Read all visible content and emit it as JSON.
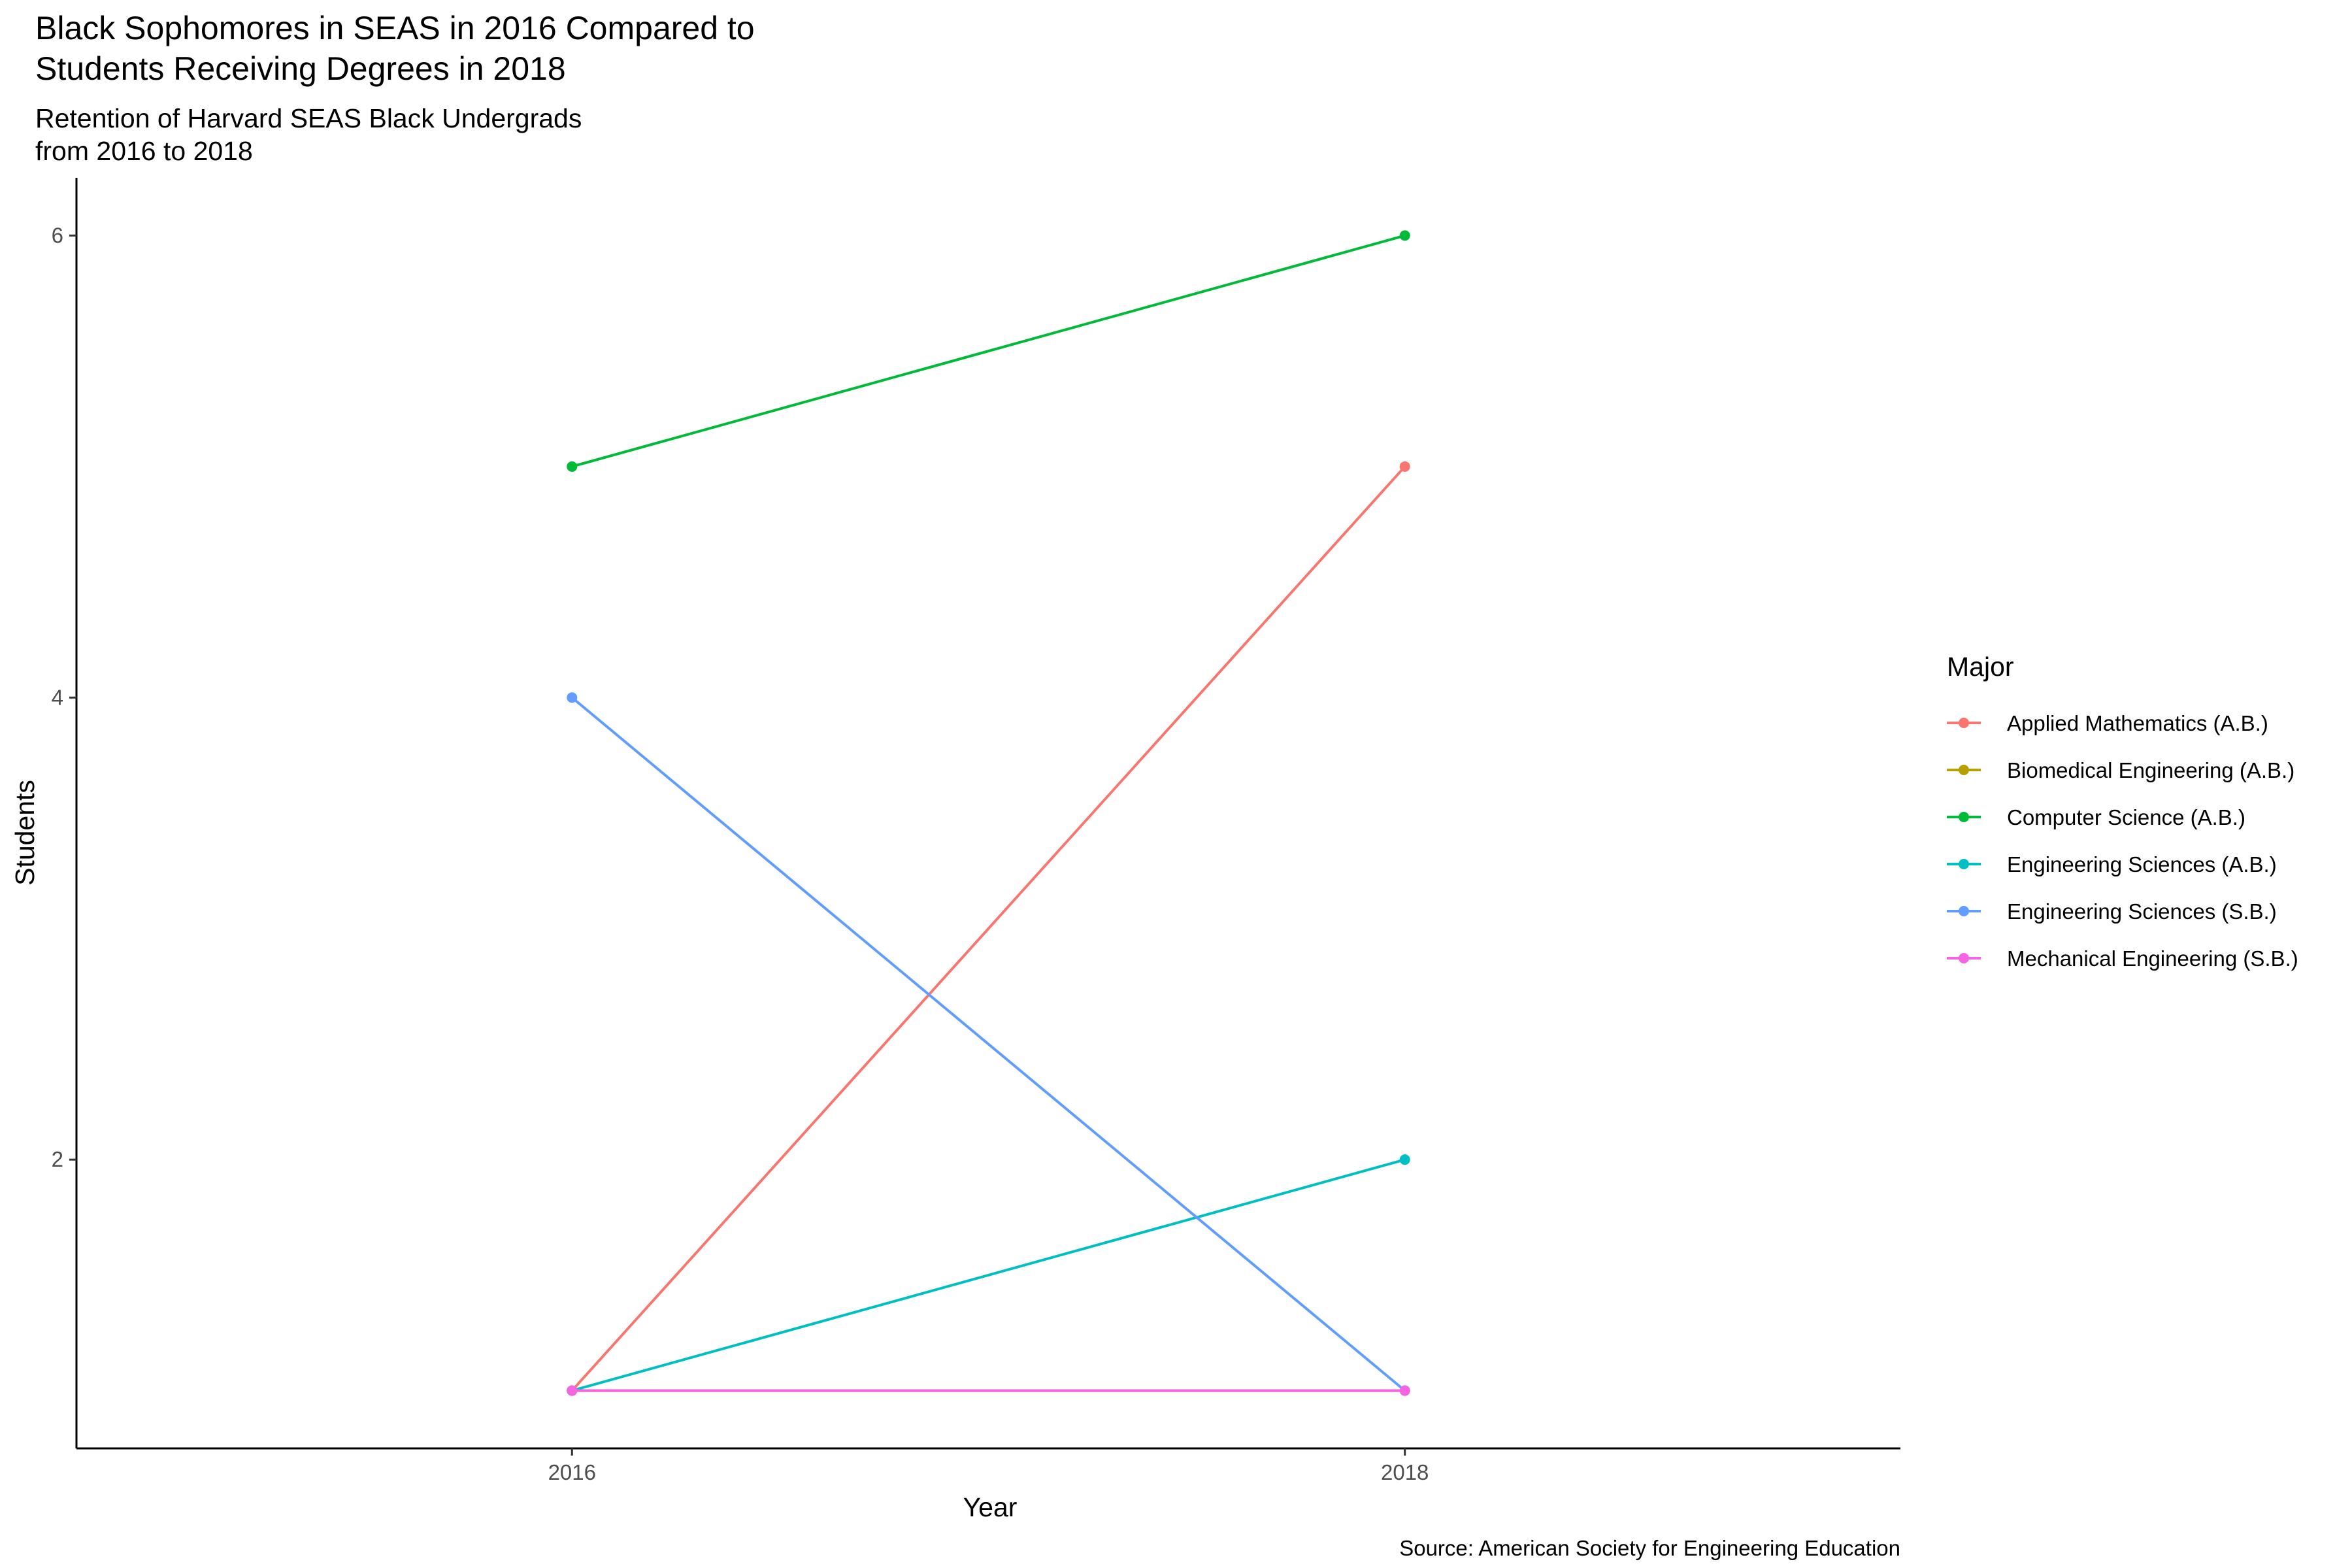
{
  "chart_data": {
    "type": "line",
    "title_lines": [
      "Black Sophomores in SEAS in 2016 Compared to",
      "Students Receiving Degrees in 2018"
    ],
    "subtitle_lines": [
      "Retention of Harvard SEAS Black Undergrads",
      "from 2016 to 2018"
    ],
    "xlabel": "Year",
    "ylabel": "Students",
    "caption": "Source: American Society for Engineering Education",
    "x": [
      2016,
      2018
    ],
    "x_tick_labels": [
      "2016",
      "2018"
    ],
    "xlim": [
      2014.81,
      2019.19
    ],
    "ylim": [
      0.75,
      6.25
    ],
    "y_ticks": [
      2,
      4,
      6
    ],
    "grid": false,
    "legend": {
      "title": "Major",
      "placement": "right"
    },
    "series": [
      {
        "name": "Applied Mathematics (A.B.)",
        "color": "#F8766D",
        "values": [
          1,
          5
        ]
      },
      {
        "name": "Biomedical Engineering (A.B.)",
        "color": "#B79F00",
        "values": [
          1,
          1
        ]
      },
      {
        "name": "Computer Science (A.B.)",
        "color": "#00BA38",
        "values": [
          5,
          6
        ]
      },
      {
        "name": "Engineering Sciences (A.B.)",
        "color": "#00BFC4",
        "values": [
          1,
          2
        ]
      },
      {
        "name": "Engineering Sciences (S.B.)",
        "color": "#619CFF",
        "values": [
          4,
          1
        ]
      },
      {
        "name": "Mechanical Engineering (S.B.)",
        "color": "#F564E3",
        "values": [
          1,
          1
        ]
      }
    ]
  }
}
